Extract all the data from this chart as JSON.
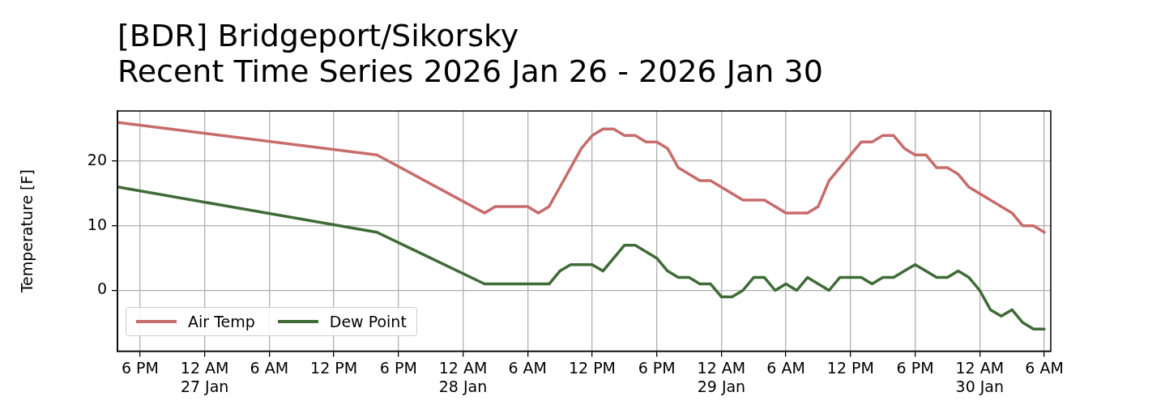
{
  "chart_data": {
    "type": "line",
    "title": "[BDR] Bridgeport/Sikorsky",
    "subtitle": "Recent Time Series 2026 Jan 26 - 2026 Jan 30",
    "ylabel": "Temperature [F]",
    "x": [
      "2026-01-26T16:00",
      "2026-01-27T16:00",
      "2026-01-28T02:00",
      "2026-01-28T03:00",
      "2026-01-28T04:00",
      "2026-01-28T05:00",
      "2026-01-28T06:00",
      "2026-01-28T07:00",
      "2026-01-28T08:00",
      "2026-01-28T09:00",
      "2026-01-28T10:00",
      "2026-01-28T11:00",
      "2026-01-28T12:00",
      "2026-01-28T13:00",
      "2026-01-28T14:00",
      "2026-01-28T15:00",
      "2026-01-28T16:00",
      "2026-01-28T17:00",
      "2026-01-28T18:00",
      "2026-01-28T19:00",
      "2026-01-28T20:00",
      "2026-01-28T21:00",
      "2026-01-28T22:00",
      "2026-01-28T23:00",
      "2026-01-29T00:00",
      "2026-01-29T01:00",
      "2026-01-29T02:00",
      "2026-01-29T03:00",
      "2026-01-29T04:00",
      "2026-01-29T05:00",
      "2026-01-29T06:00",
      "2026-01-29T07:00",
      "2026-01-29T08:00",
      "2026-01-29T09:00",
      "2026-01-29T10:00",
      "2026-01-29T11:00",
      "2026-01-29T12:00",
      "2026-01-29T13:00",
      "2026-01-29T14:00",
      "2026-01-29T15:00",
      "2026-01-29T16:00",
      "2026-01-29T17:00",
      "2026-01-29T18:00",
      "2026-01-29T19:00",
      "2026-01-29T20:00",
      "2026-01-29T21:00",
      "2026-01-29T22:00",
      "2026-01-29T23:00",
      "2026-01-30T00:00",
      "2026-01-30T01:00",
      "2026-01-30T02:00",
      "2026-01-30T03:00",
      "2026-01-30T04:00",
      "2026-01-30T05:00",
      "2026-01-30T06:00"
    ],
    "series": [
      {
        "name": "Air Temp",
        "color": "#c86b6b",
        "values": [
          26,
          21,
          12,
          13,
          13,
          13,
          13,
          12,
          13,
          16,
          19,
          22,
          24,
          25,
          25,
          24,
          24,
          23,
          23,
          22,
          19,
          18,
          17,
          17,
          16,
          15,
          14,
          14,
          14,
          13,
          12,
          12,
          12,
          13,
          17,
          19,
          21,
          23,
          23,
          24,
          24,
          22,
          21,
          21,
          19,
          19,
          18,
          16,
          15,
          14,
          13,
          12,
          10,
          10,
          9
        ]
      },
      {
        "name": "Dew Point",
        "color": "#3f6b37",
        "values": [
          16,
          9,
          1,
          1,
          1,
          1,
          1,
          1,
          1,
          3,
          4,
          4,
          4,
          3,
          5,
          7,
          7,
          6,
          5,
          3,
          2,
          2,
          1,
          1,
          -1,
          -1,
          0,
          2,
          2,
          0,
          1,
          0,
          2,
          1,
          0,
          2,
          2,
          2,
          1,
          2,
          2,
          3,
          4,
          3,
          2,
          2,
          3,
          2,
          0,
          -3,
          -4,
          -3,
          -5,
          -6,
          -6
        ]
      }
    ],
    "xlim": [
      "2026-01-26T15:54",
      "2026-01-30T06:36"
    ],
    "xticks": [
      {
        "value": "2026-01-26T18:00",
        "label": "6 PM"
      },
      {
        "value": "2026-01-27T00:00",
        "label": "12 AM\n27 Jan"
      },
      {
        "value": "2026-01-27T06:00",
        "label": "6 AM"
      },
      {
        "value": "2026-01-27T12:00",
        "label": "12 PM"
      },
      {
        "value": "2026-01-27T18:00",
        "label": "6 PM"
      },
      {
        "value": "2026-01-28T00:00",
        "label": "12 AM\n28 Jan"
      },
      {
        "value": "2026-01-28T06:00",
        "label": "6 AM"
      },
      {
        "value": "2026-01-28T12:00",
        "label": "12 PM"
      },
      {
        "value": "2026-01-28T18:00",
        "label": "6 PM"
      },
      {
        "value": "2026-01-29T00:00",
        "label": "12 AM\n29 Jan"
      },
      {
        "value": "2026-01-29T06:00",
        "label": "6 AM"
      },
      {
        "value": "2026-01-29T12:00",
        "label": "12 PM"
      },
      {
        "value": "2026-01-29T18:00",
        "label": "6 PM"
      },
      {
        "value": "2026-01-30T00:00",
        "label": "12 AM\n30 Jan"
      },
      {
        "value": "2026-01-30T06:00",
        "label": "6 AM"
      }
    ],
    "ylim": [
      -9.4,
      27.8
    ],
    "yticks": [
      0,
      10,
      20
    ],
    "grid": true,
    "legend": "bottom left",
    "line_style": "solid",
    "marker": "none"
  }
}
